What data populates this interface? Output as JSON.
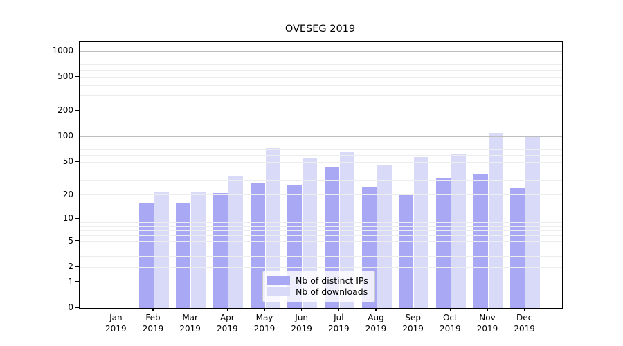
{
  "figure": {
    "title": "OVESEG 2019"
  },
  "legend": {
    "items": [
      {
        "label": "Nb of distinct IPs",
        "color": "#a8a8f4"
      },
      {
        "label": "Nb of downloads",
        "color": "#d9d9f8"
      }
    ]
  },
  "chart_data": {
    "type": "bar",
    "title": "OVESEG 2019",
    "categories": [
      "Jan 2019",
      "Feb 2019",
      "Mar 2019",
      "Apr 2019",
      "May 2019",
      "Jun 2019",
      "Jul 2019",
      "Aug 2019",
      "Sep 2019",
      "Oct 2019",
      "Nov 2019",
      "Dec 2019"
    ],
    "x_tick_month": [
      "Jan",
      "Feb",
      "Mar",
      "Apr",
      "May",
      "Jun",
      "Jul",
      "Aug",
      "Sep",
      "Oct",
      "Nov",
      "Dec"
    ],
    "x_tick_year": "2019",
    "series": [
      {
        "name": "Nb of distinct IPs",
        "color": "#a8a8f4",
        "values": [
          0,
          16,
          16,
          21,
          28,
          26,
          44,
          25,
          20,
          32,
          36,
          24
        ]
      },
      {
        "name": "Nb of downloads",
        "color": "#d9d9f8",
        "values": [
          0,
          22,
          22,
          34,
          73,
          55,
          67,
          46,
          57,
          63,
          110,
          102
        ]
      }
    ],
    "yscale": "symlog",
    "y_ticks": [
      1000,
      500,
      200,
      100,
      50,
      20,
      10,
      5,
      2,
      1,
      0
    ],
    "ylim": [
      0,
      1300
    ],
    "xlabel": "",
    "ylabel": "",
    "grid": {
      "major_at": [
        1,
        10,
        100,
        1000
      ],
      "minor_decades": [
        1,
        10,
        100
      ],
      "minor_mantissas": [
        2,
        3,
        4,
        5,
        6,
        7,
        8,
        9
      ],
      "major_color": "#bdbdbd",
      "minor_color": "#ededed"
    },
    "legend_position": "lower center"
  }
}
